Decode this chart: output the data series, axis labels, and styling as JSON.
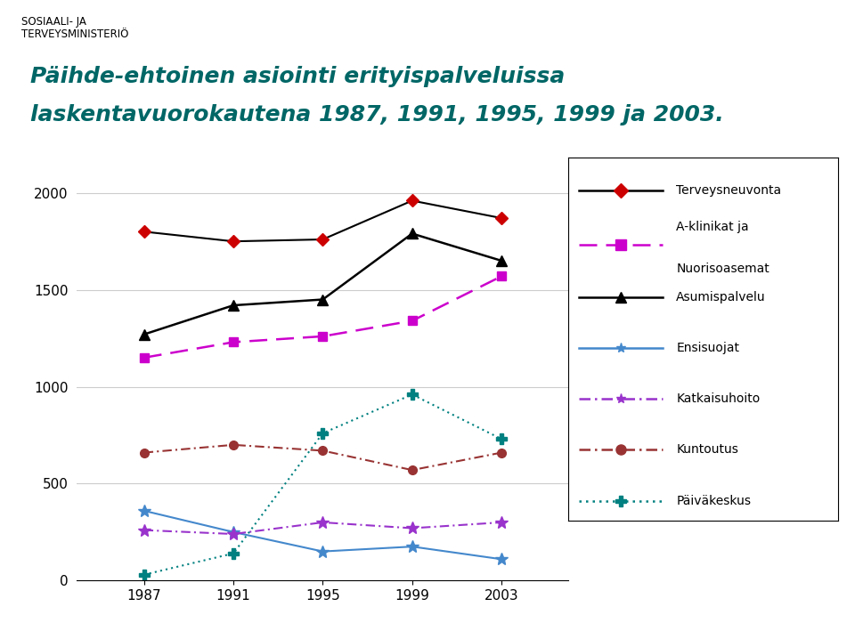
{
  "title_line1": "Päihde-ehtoinen asiointi erityispalveluissa",
  "title_line2": "laskentavuorokautena 1987, 1991, 1995, 1999 ja 2003.",
  "header_line1": "SOSIAALI- JA",
  "header_line2": "TERVEYSMINISTERIÖ",
  "years": [
    1987,
    1991,
    1995,
    1999,
    2003
  ],
  "series": [
    {
      "name": "Terveysneuvonta",
      "values": [
        1800,
        1750,
        1760,
        1960,
        1870
      ],
      "color": "#000000",
      "linestyle": "-",
      "marker": "D",
      "markercolor": "#cc0000",
      "markerfacecolor": "#cc0000",
      "markersize": 7,
      "linewidth": 1.5,
      "dashes": null
    },
    {
      "name": "A-klinikat ja\nNuorisoasemat",
      "values": [
        1150,
        1230,
        1260,
        1340,
        1570
      ],
      "color": "#cc00cc",
      "linestyle": "--",
      "marker": "s",
      "markercolor": "#cc00cc",
      "markerfacecolor": "#cc00cc",
      "markersize": 7,
      "linewidth": 1.8,
      "dashes": [
        8,
        4
      ]
    },
    {
      "name": "Asumispalvelu",
      "values": [
        1270,
        1420,
        1450,
        1790,
        1650
      ],
      "color": "#000000",
      "linestyle": "-",
      "marker": "^",
      "markercolor": "#000000",
      "markerfacecolor": "#000000",
      "markersize": 9,
      "linewidth": 1.8,
      "dashes": null
    },
    {
      "name": "Ensisuojat",
      "values": [
        360,
        250,
        150,
        175,
        110
      ],
      "color": "#4488cc",
      "linestyle": "-",
      "marker": "*",
      "markercolor": "#4488cc",
      "markerfacecolor": "#4488cc",
      "markersize": 10,
      "linewidth": 1.5,
      "dashes": null
    },
    {
      "name": "Katkaisuhoito",
      "values": [
        260,
        240,
        300,
        270,
        300
      ],
      "color": "#9933cc",
      "linestyle": "-.",
      "marker": "*",
      "markercolor": "#9933cc",
      "markerfacecolor": "#9933cc",
      "markersize": 10,
      "linewidth": 1.5,
      "dashes": [
        5,
        2,
        1,
        2
      ]
    },
    {
      "name": "Kuntoutus",
      "values": [
        660,
        700,
        670,
        570,
        660
      ],
      "color": "#993333",
      "linestyle": "-.",
      "marker": "o",
      "markercolor": "#993333",
      "markerfacecolor": "#993333",
      "markersize": 7,
      "linewidth": 1.5,
      "dashes": [
        5,
        2,
        1,
        2
      ]
    },
    {
      "name": "Päiväkeskus",
      "values": [
        30,
        140,
        760,
        960,
        730
      ],
      "color": "#008080",
      "linestyle": ":",
      "marker": "P",
      "markercolor": "#008080",
      "markerfacecolor": "#008080",
      "markersize": 8,
      "linewidth": 1.5,
      "dashes": [
        1,
        2
      ]
    }
  ],
  "ylim": [
    0,
    2100
  ],
  "yticks": [
    0,
    500,
    1000,
    1500,
    2000
  ],
  "background_color": "#ffffff",
  "title_color": "#006666",
  "accent_color": "#cc6600",
  "legend_items": [
    {
      "name": "Terveysneuvonta",
      "color": "#000000",
      "linestyle": "-",
      "marker": "D",
      "markercolor": "#cc0000",
      "dashes": null
    },
    {
      "name": "A-klinikat ja\nNuorisoasemat",
      "color": "#cc00cc",
      "linestyle": "--",
      "marker": "s",
      "markercolor": "#cc00cc",
      "dashes": [
        8,
        4
      ]
    },
    {
      "name": "Asumispalvelu",
      "color": "#000000",
      "linestyle": "-",
      "marker": "^",
      "markercolor": "#000000",
      "dashes": null
    },
    {
      "name": "Ensisuojat",
      "color": "#4488cc",
      "linestyle": "-",
      "marker": "*",
      "markercolor": "#4488cc",
      "dashes": null
    },
    {
      "name": "Katkaisuhoito",
      "color": "#9933cc",
      "linestyle": "-.",
      "marker": "*",
      "markercolor": "#9933cc",
      "dashes": [
        5,
        2,
        1,
        2
      ]
    },
    {
      "name": "Kuntoutus",
      "color": "#993333",
      "linestyle": "-.",
      "marker": "o",
      "markercolor": "#993333",
      "dashes": [
        5,
        2,
        1,
        2
      ]
    },
    {
      "name": "Päiväkeskus",
      "color": "#008080",
      "linestyle": ":",
      "marker": "P",
      "markercolor": "#008080",
      "dashes": [
        1,
        2
      ]
    }
  ]
}
